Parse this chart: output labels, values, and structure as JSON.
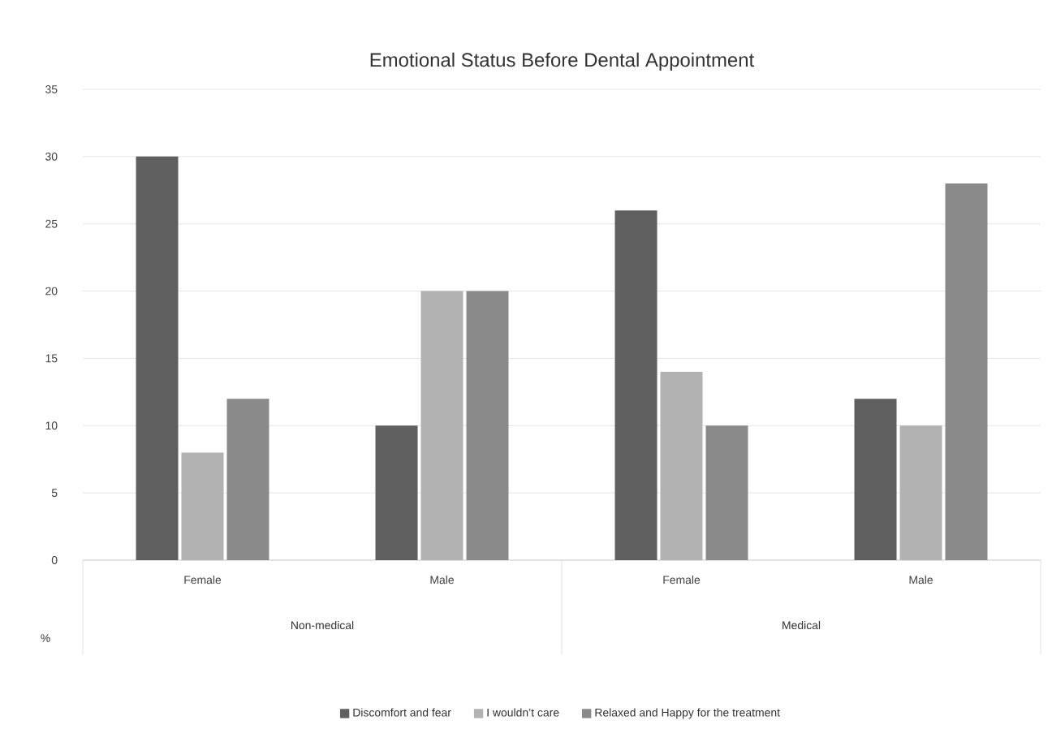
{
  "chart_data": {
    "type": "bar",
    "title": "Emotional Status Before Dental Appointment",
    "ylabel": "%",
    "categories": [
      "Female",
      "Male",
      "Female",
      "Male"
    ],
    "annotations": [
      "Non-medical",
      "Medical"
    ],
    "series": [
      {
        "name": "Discomfort and fear",
        "color": "#5f5f5f",
        "values": [
          30,
          10,
          26,
          12
        ]
      },
      {
        "name": "I wouldn’t care",
        "color": "#b2b2b2",
        "values": [
          8,
          20,
          14,
          10
        ]
      },
      {
        "name": "Relaxed and Happy for the treatment",
        "color": "#8a8a8a",
        "values": [
          12,
          20,
          10,
          28
        ]
      }
    ],
    "ylim": [
      0,
      35
    ],
    "yticks": [
      0,
      5,
      10,
      15,
      20,
      25,
      30,
      35
    ],
    "grid": "y",
    "legend": "bottom"
  }
}
